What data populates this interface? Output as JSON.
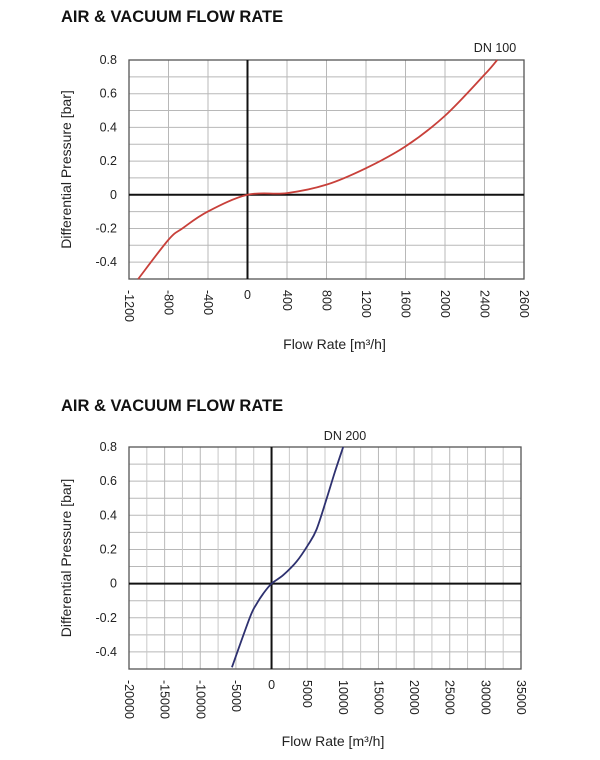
{
  "chart_data": [
    {
      "type": "line",
      "title": "AIR & VACUUM FLOW RATE",
      "series_label": "DN 100",
      "xlabel": "Flow Rate [m³/h]",
      "ylabel": "Differential Pressure [bar]",
      "xticks": [
        -1200,
        -800,
        -400,
        0,
        400,
        800,
        1200,
        1600,
        2000,
        2400,
        2600
      ],
      "yticks": [
        0.8,
        0.6,
        0.4,
        0.2,
        0,
        -0.2,
        -0.4
      ],
      "xlim": [
        -1200,
        2600
      ],
      "ylim": [
        -0.5,
        0.8
      ],
      "grid": true,
      "color": "#c8403a",
      "x": [
        -1107,
        -800,
        -655,
        -400,
        0,
        400,
        800,
        1200,
        1600,
        2000,
        2400,
        2464
      ],
      "y": [
        -0.5,
        -0.267,
        -0.198,
        -0.099,
        0,
        0.01,
        0.06,
        0.158,
        0.287,
        0.469,
        0.713,
        0.8
      ]
    },
    {
      "type": "line",
      "title": "AIR & VACUUM FLOW RATE",
      "series_label": "DN 200",
      "xlabel": "Flow Rate [m³/h]",
      "ylabel": "Differential Pressure [bar]",
      "xticks": [
        -20000,
        -15000,
        -10000,
        -5000,
        0,
        5000,
        10000,
        15000,
        20000,
        25000,
        30000,
        35000
      ],
      "yticks": [
        0.8,
        0.6,
        0.4,
        0.2,
        0,
        -0.2,
        -0.4
      ],
      "xlim": [
        -20000,
        35000
      ],
      "ylim": [
        -0.5,
        0.8
      ],
      "grid": true,
      "color": "#2e3170",
      "x": [
        -5560,
        -3040,
        -2100,
        -1170,
        0,
        1640,
        3510,
        5140,
        6310,
        7710,
        8880,
        10050
      ],
      "y": [
        -0.49,
        -0.198,
        -0.119,
        -0.059,
        0,
        0.05,
        0.129,
        0.228,
        0.317,
        0.495,
        0.653,
        0.8
      ]
    }
  ]
}
